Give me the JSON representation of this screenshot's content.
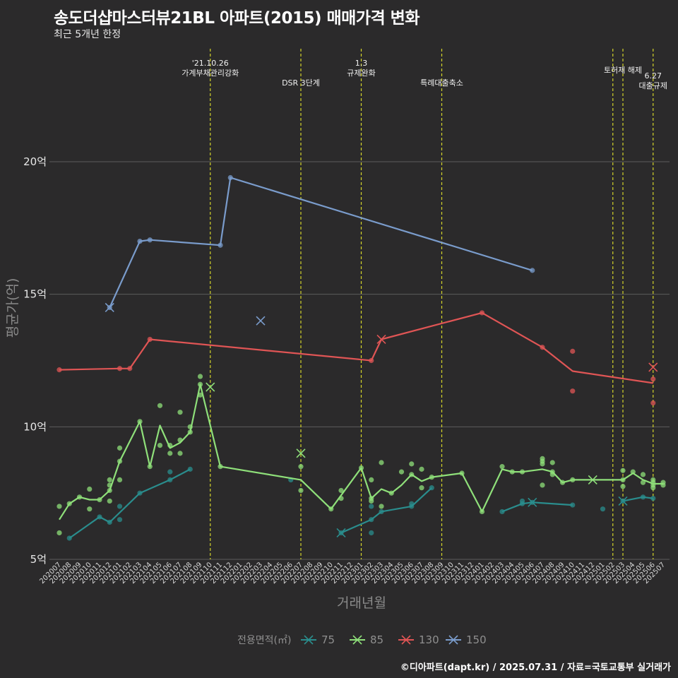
{
  "chart_data": {
    "type": "line",
    "title": "송도더샵마스터뷰21BL 아파트(2015) 매매가격 변화",
    "subtitle": "최근 5개년 한정",
    "xlabel": "거래년월",
    "ylabel": "평균가(억)",
    "caption": "©디아파트(dapt.kr) / 2025.07.31 / 자료=국토교통부 실거래가",
    "legend_title": "전용면적(㎡)",
    "legend_position": "bottom",
    "grid": true,
    "ylim": [
      5,
      22
    ],
    "yticks": [
      {
        "value": 5,
        "label": "5억"
      },
      {
        "value": 10,
        "label": "10억"
      },
      {
        "value": 15,
        "label": "15억"
      },
      {
        "value": 20,
        "label": "20억"
      }
    ],
    "x_categories": [
      "202007",
      "202008",
      "202009",
      "202010",
      "202011",
      "202012",
      "202101",
      "202102",
      "202103",
      "202104",
      "202105",
      "202106",
      "202107",
      "202108",
      "202109",
      "202110",
      "202111",
      "202112",
      "202201",
      "202202",
      "202203",
      "202204",
      "202205",
      "202206",
      "202207",
      "202208",
      "202209",
      "202210",
      "202211",
      "202212",
      "202301",
      "202302",
      "202303",
      "202304",
      "202305",
      "202306",
      "202307",
      "202308",
      "202309",
      "202310",
      "202311",
      "202312",
      "202401",
      "202402",
      "202403",
      "202404",
      "202405",
      "202406",
      "202407",
      "202408",
      "202409",
      "202410",
      "202411",
      "202412",
      "202501",
      "202502",
      "202503",
      "202504",
      "202505",
      "202506",
      "202507"
    ],
    "events": [
      {
        "x": "202110",
        "label": "'21.10.26\n가계부채관리강화"
      },
      {
        "x": "202207",
        "label": "DSR 3단계"
      },
      {
        "x": "202301",
        "label": "1.3\n규제완화"
      },
      {
        "x": "202309",
        "label": "특례대출축소"
      },
      {
        "x": "202502",
        "label": ""
      },
      {
        "x": "202503",
        "label": "토허제 해제"
      },
      {
        "x": "202506",
        "label": "6.27\n대출규제"
      }
    ],
    "series": [
      {
        "name": "75",
        "color": "#2a8d8d",
        "line": [
          [
            "202008",
            5.8
          ],
          [
            "202011",
            6.6
          ],
          [
            "202012",
            6.4
          ],
          [
            "202103",
            7.5
          ],
          [
            "202106",
            8.0
          ],
          [
            "202108",
            8.4
          ]
        ],
        "points": [
          [
            "202008",
            5.8
          ],
          [
            "202011",
            6.6
          ],
          [
            "202012",
            6.4
          ],
          [
            "202101",
            6.5
          ],
          [
            "202101",
            7.0
          ],
          [
            "202103",
            7.5
          ],
          [
            "202106",
            8.0
          ],
          [
            "202106",
            8.3
          ],
          [
            "202108",
            8.4
          ],
          [
            "202206",
            8.0
          ],
          [
            "202211",
            6.0
          ],
          [
            "202302",
            6.5
          ],
          [
            "202302",
            6.0
          ],
          [
            "202302",
            7.0
          ],
          [
            "202303",
            6.8
          ],
          [
            "202306",
            7.0
          ],
          [
            "202306",
            7.1
          ],
          [
            "202308",
            7.7
          ],
          [
            "202403",
            6.8
          ],
          [
            "202405",
            7.1
          ],
          [
            "202405",
            7.2
          ],
          [
            "202406",
            7.15
          ],
          [
            "202410",
            7.05
          ],
          [
            "202501",
            6.9
          ],
          [
            "202503",
            7.2
          ],
          [
            "202505",
            7.35
          ],
          [
            "202506",
            7.3
          ]
        ],
        "line2": [
          [
            "202211",
            6.0
          ],
          [
            "202302",
            6.5
          ],
          [
            "202303",
            6.8
          ],
          [
            "202306",
            7.0
          ],
          [
            "202308",
            7.7
          ]
        ],
        "line3": [
          [
            "202403",
            6.8
          ],
          [
            "202405",
            7.1
          ],
          [
            "202406",
            7.15
          ],
          [
            "202410",
            7.05
          ]
        ],
        "line4": [
          [
            "202503",
            7.2
          ],
          [
            "202505",
            7.35
          ],
          [
            "202506",
            7.3
          ]
        ],
        "crosses": [
          [
            "202211",
            6.0
          ],
          [
            "202406",
            7.15
          ],
          [
            "202503",
            7.2
          ]
        ]
      },
      {
        "name": "85",
        "color": "#8fe07a",
        "line": [
          [
            "202007",
            6.5
          ],
          [
            "202008",
            7.1
          ],
          [
            "202009",
            7.35
          ],
          [
            "202010",
            7.25
          ],
          [
            "202011",
            7.25
          ],
          [
            "202012",
            7.6
          ],
          [
            "202101",
            8.7
          ],
          [
            "202103",
            10.2
          ],
          [
            "202104",
            8.5
          ],
          [
            "202105",
            10.05
          ],
          [
            "202106",
            9.2
          ],
          [
            "202107",
            9.4
          ],
          [
            "202108",
            9.8
          ],
          [
            "202109",
            11.6
          ],
          [
            "202111",
            8.5
          ],
          [
            "202207",
            8.0
          ],
          [
            "202210",
            6.9
          ],
          [
            "202301",
            8.45
          ],
          [
            "202302",
            7.3
          ],
          [
            "202303",
            7.65
          ],
          [
            "202304",
            7.5
          ],
          [
            "202305",
            7.8
          ],
          [
            "202306",
            8.2
          ],
          [
            "202307",
            7.95
          ],
          [
            "202308",
            8.1
          ],
          [
            "202311",
            8.25
          ],
          [
            "202401",
            6.8
          ],
          [
            "202403",
            8.4
          ],
          [
            "202404",
            8.3
          ],
          [
            "202405",
            8.3
          ],
          [
            "202407",
            8.4
          ],
          [
            "202408",
            8.3
          ],
          [
            "202409",
            7.9
          ],
          [
            "202410",
            8.0
          ],
          [
            "202412",
            8.0
          ],
          [
            "202503",
            8.0
          ],
          [
            "202504",
            8.25
          ],
          [
            "202505",
            8.0
          ],
          [
            "202506",
            7.85
          ],
          [
            "202507",
            7.85
          ]
        ],
        "points": [
          [
            "202007",
            7.0
          ],
          [
            "202007",
            6.0
          ],
          [
            "202008",
            7.1
          ],
          [
            "202009",
            7.35
          ],
          [
            "202010",
            7.65
          ],
          [
            "202010",
            6.9
          ],
          [
            "202011",
            7.25
          ],
          [
            "202012",
            7.6
          ],
          [
            "202012",
            7.2
          ],
          [
            "202012",
            7.8
          ],
          [
            "202012",
            8.0
          ],
          [
            "202101",
            8.7
          ],
          [
            "202101",
            9.2
          ],
          [
            "202101",
            8.0
          ],
          [
            "202103",
            10.2
          ],
          [
            "202104",
            8.5
          ],
          [
            "202105",
            10.8
          ],
          [
            "202105",
            9.3
          ],
          [
            "202106",
            9.0
          ],
          [
            "202106",
            9.3
          ],
          [
            "202107",
            10.55
          ],
          [
            "202107",
            9.5
          ],
          [
            "202107",
            9.0
          ],
          [
            "202108",
            10.0
          ],
          [
            "202108",
            9.8
          ],
          [
            "202109",
            11.6
          ],
          [
            "202109",
            11.9
          ],
          [
            "202109",
            11.2
          ],
          [
            "202111",
            8.5
          ],
          [
            "202207",
            8.5
          ],
          [
            "202207",
            7.6
          ],
          [
            "202210",
            6.9
          ],
          [
            "202211",
            7.3
          ],
          [
            "202211",
            7.6
          ],
          [
            "202301",
            8.45
          ],
          [
            "202302",
            8.0
          ],
          [
            "202302",
            7.3
          ],
          [
            "202302",
            7.2
          ],
          [
            "202303",
            8.65
          ],
          [
            "202303",
            7.0
          ],
          [
            "202304",
            7.5
          ],
          [
            "202305",
            8.3
          ],
          [
            "202306",
            8.6
          ],
          [
            "202306",
            8.2
          ],
          [
            "202307",
            8.4
          ],
          [
            "202307",
            7.7
          ],
          [
            "202308",
            8.1
          ],
          [
            "202311",
            8.25
          ],
          [
            "202401",
            6.8
          ],
          [
            "202403",
            8.5
          ],
          [
            "202404",
            8.3
          ],
          [
            "202405",
            8.3
          ],
          [
            "202407",
            8.7
          ],
          [
            "202407",
            8.8
          ],
          [
            "202407",
            8.6
          ],
          [
            "202407",
            7.8
          ],
          [
            "202408",
            8.65
          ],
          [
            "202408",
            8.3
          ],
          [
            "202408",
            8.2
          ],
          [
            "202409",
            7.9
          ],
          [
            "202410",
            8.0
          ],
          [
            "202503",
            8.0
          ],
          [
            "202503",
            8.35
          ],
          [
            "202503",
            7.75
          ],
          [
            "202504",
            8.3
          ],
          [
            "202505",
            8.2
          ],
          [
            "202505",
            7.9
          ],
          [
            "202506",
            8.0
          ],
          [
            "202506",
            7.9
          ],
          [
            "202506",
            7.7
          ],
          [
            "202506",
            7.8
          ],
          [
            "202507",
            7.9
          ],
          [
            "202507",
            7.8
          ]
        ],
        "crosses": [
          [
            "202110",
            11.5
          ],
          [
            "202207",
            9.0
          ],
          [
            "202412",
            8.0
          ]
        ]
      },
      {
        "name": "130",
        "color": "#e05555",
        "line": [
          [
            "202007",
            12.15
          ],
          [
            "202101",
            12.2
          ],
          [
            "202102",
            12.2
          ],
          [
            "202104",
            13.3
          ],
          [
            "202302",
            12.5
          ],
          [
            "202303",
            13.3
          ],
          [
            "202401",
            14.3
          ],
          [
            "202407",
            13.0
          ],
          [
            "202410",
            12.1
          ],
          [
            "202506",
            11.65
          ]
        ],
        "points": [
          [
            "202007",
            12.15
          ],
          [
            "202101",
            12.2
          ],
          [
            "202102",
            12.2
          ],
          [
            "202104",
            13.3
          ],
          [
            "202302",
            12.5
          ],
          [
            "202401",
            14.3
          ],
          [
            "202407",
            13.0
          ],
          [
            "202410",
            12.85
          ],
          [
            "202410",
            11.35
          ],
          [
            "202506",
            11.8
          ],
          [
            "202506",
            10.9
          ]
        ],
        "crosses": [
          [
            "202303",
            13.3
          ],
          [
            "202506",
            12.25
          ]
        ]
      },
      {
        "name": "150",
        "color": "#7a9ccc",
        "line": [
          [
            "202012",
            14.5
          ],
          [
            "202103",
            17.0
          ],
          [
            "202104",
            17.05
          ],
          [
            "202111",
            16.85
          ],
          [
            "202112",
            19.4
          ],
          [
            "202406",
            15.9
          ]
        ],
        "points": [
          [
            "202012",
            14.5
          ],
          [
            "202103",
            17.0
          ],
          [
            "202104",
            17.05
          ],
          [
            "202111",
            16.85
          ],
          [
            "202112",
            19.4
          ],
          [
            "202406",
            15.9
          ]
        ],
        "crosses": [
          [
            "202012",
            14.5
          ],
          [
            "202203",
            14.0
          ]
        ]
      }
    ]
  }
}
